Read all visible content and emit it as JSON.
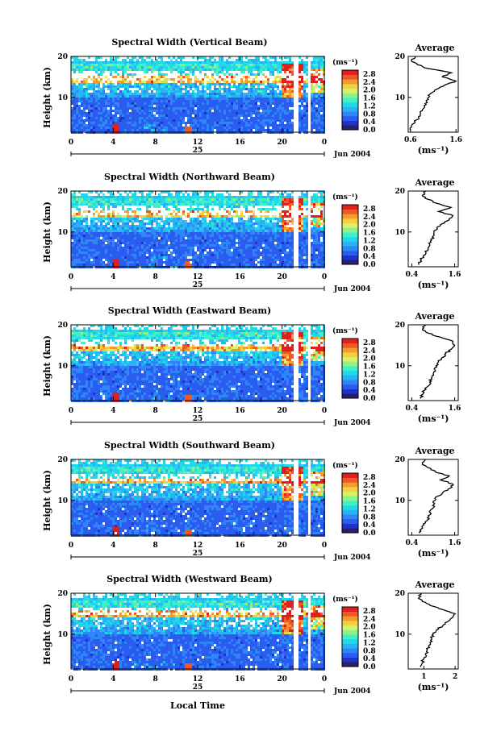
{
  "figure": {
    "xlabel": "Local Time",
    "date_label": "Jun 2004",
    "day_label": "25",
    "ylabel": "Height (km)",
    "colorbar_unit": "(ms⁻¹)",
    "colorbar_ticks": [
      "2.8",
      "2.4",
      "2.0",
      "1.6",
      "1.2",
      "0.8",
      "0.4",
      "0.0"
    ],
    "profile_title": "Average",
    "profile_unit": "(ms⁻¹)"
  },
  "chart_data": [
    {
      "type": "heatmap",
      "title": "Spectral Width (Vertical Beam)",
      "x_ticks": [
        "0",
        "4",
        "8",
        "12",
        "16",
        "20",
        "0"
      ],
      "y_ticks": [
        "10",
        "20"
      ],
      "xlim": [
        0,
        24
      ],
      "ylim": [
        1.5,
        20
      ],
      "clim": [
        0.0,
        3.0
      ],
      "profile": {
        "type": "line",
        "title": "Average",
        "x_ticks": [
          "0.6",
          "1.6"
        ],
        "xlim": [
          0.55,
          1.65
        ],
        "y_ticks": [
          "10",
          "20"
        ],
        "ylim": [
          1.5,
          20
        ],
        "heights": [
          2,
          3,
          4,
          5,
          6,
          7,
          8,
          9,
          10,
          11,
          12,
          13,
          14,
          15,
          16,
          17,
          18,
          19,
          20
        ],
        "values": [
          0.6,
          0.62,
          0.7,
          0.78,
          0.82,
          0.86,
          0.9,
          0.95,
          1.0,
          1.05,
          1.18,
          1.35,
          1.6,
          1.3,
          1.5,
          1.0,
          0.75,
          0.62,
          0.7
        ]
      }
    },
    {
      "type": "heatmap",
      "title": "Spectral Width (Northward Beam)",
      "x_ticks": [
        "0",
        "4",
        "8",
        "12",
        "16",
        "20",
        "0"
      ],
      "y_ticks": [
        "10",
        "20"
      ],
      "xlim": [
        0,
        24
      ],
      "ylim": [
        1.5,
        20
      ],
      "clim": [
        0.0,
        3.0
      ],
      "profile": {
        "type": "line",
        "title": "Average",
        "x_ticks": [
          "0.4",
          "1.6"
        ],
        "xlim": [
          0.3,
          1.7
        ],
        "y_ticks": [
          "10",
          "20"
        ],
        "ylim": [
          1.5,
          20
        ],
        "heights": [
          2,
          3,
          4,
          5,
          6,
          7,
          8,
          9,
          10,
          11,
          12,
          13,
          14,
          15,
          16,
          17,
          18,
          19,
          20
        ],
        "values": [
          0.6,
          0.65,
          0.72,
          0.8,
          0.85,
          0.9,
          0.95,
          1.0,
          1.02,
          1.1,
          1.25,
          1.45,
          1.55,
          1.15,
          1.5,
          1.1,
          0.85,
          0.7,
          0.8
        ]
      }
    },
    {
      "type": "heatmap",
      "title": "Spectral Width (Eastward Beam)",
      "x_ticks": [
        "0",
        "4",
        "8",
        "12",
        "16",
        "20",
        "0"
      ],
      "y_ticks": [
        "10",
        "20"
      ],
      "xlim": [
        0,
        24
      ],
      "ylim": [
        1.5,
        20
      ],
      "clim": [
        0.0,
        3.0
      ],
      "profile": {
        "type": "line",
        "title": "Average",
        "x_ticks": [
          "0.4",
          "1.6"
        ],
        "xlim": [
          0.3,
          1.7
        ],
        "y_ticks": [
          "10",
          "20"
        ],
        "ylim": [
          1.5,
          20
        ],
        "heights": [
          2,
          3,
          4,
          5,
          6,
          7,
          8,
          9,
          10,
          11,
          12,
          13,
          14,
          15,
          16,
          17,
          18,
          19,
          20
        ],
        "values": [
          0.65,
          0.7,
          0.75,
          0.85,
          0.9,
          0.95,
          1.0,
          1.05,
          1.08,
          1.15,
          1.25,
          1.35,
          1.5,
          1.6,
          1.55,
          1.2,
          0.85,
          0.7,
          0.8
        ]
      }
    },
    {
      "type": "heatmap",
      "title": "Spectral Width (Southward Beam)",
      "x_ticks": [
        "0",
        "4",
        "8",
        "12",
        "16",
        "20",
        "0"
      ],
      "y_ticks": [
        "10",
        "20"
      ],
      "xlim": [
        0,
        24
      ],
      "ylim": [
        1.5,
        20
      ],
      "clim": [
        0.0,
        3.0
      ],
      "profile": {
        "type": "line",
        "title": "Average",
        "x_ticks": [
          "0.4",
          "1.6"
        ],
        "xlim": [
          0.3,
          1.7
        ],
        "y_ticks": [
          "10",
          "20"
        ],
        "ylim": [
          1.5,
          20
        ],
        "heights": [
          2,
          3,
          4,
          5,
          6,
          7,
          8,
          9,
          10,
          11,
          12,
          13,
          14,
          15,
          16,
          17,
          18,
          19,
          20
        ],
        "values": [
          0.62,
          0.66,
          0.74,
          0.82,
          0.88,
          0.92,
          0.98,
          1.02,
          1.05,
          1.12,
          1.28,
          1.48,
          1.55,
          1.2,
          1.45,
          1.05,
          0.85,
          0.7,
          0.78
        ]
      }
    },
    {
      "type": "heatmap",
      "title": "Spectral Width (Westward Beam)",
      "x_ticks": [
        "0",
        "4",
        "8",
        "12",
        "16",
        "20",
        "0"
      ],
      "y_ticks": [
        "10",
        "20"
      ],
      "xlim": [
        0,
        24
      ],
      "ylim": [
        1.5,
        20
      ],
      "clim": [
        0.0,
        3.0
      ],
      "profile": {
        "type": "line",
        "title": "Average",
        "x_ticks": [
          "1",
          "2"
        ],
        "xlim": [
          0.5,
          2.1
        ],
        "y_ticks": [
          "10",
          "20"
        ],
        "ylim": [
          1.5,
          20
        ],
        "heights": [
          2,
          3,
          4,
          5,
          6,
          7,
          8,
          9,
          10,
          11,
          12,
          13,
          14,
          15,
          16,
          17,
          18,
          19,
          20
        ],
        "values": [
          0.9,
          0.95,
          1.0,
          1.05,
          1.1,
          1.15,
          1.2,
          1.25,
          1.3,
          1.4,
          1.6,
          1.75,
          1.9,
          2.0,
          1.6,
          1.2,
          0.95,
          0.85,
          0.9
        ]
      }
    }
  ]
}
